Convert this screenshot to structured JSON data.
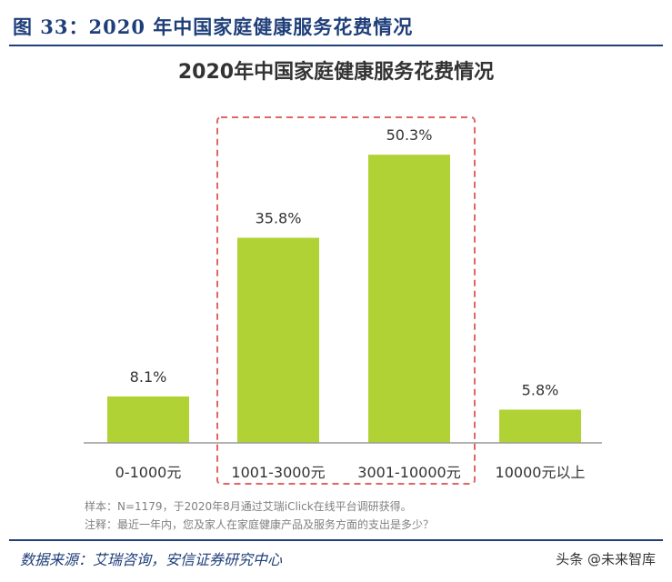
{
  "figure": {
    "label": "图 33：2020 年中国家庭健康服务花费情况",
    "source": "数据来源：艾瑞咨询，安信证券研究中心",
    "watermark": "头条 @未来智库"
  },
  "chart_data": {
    "type": "bar",
    "title": "2020年中国家庭健康服务花费情况",
    "categories": [
      "0-1000元",
      "1001-3000元",
      "3001-10000元",
      "10000元以上"
    ],
    "values": [
      8.1,
      35.8,
      50.3,
      5.8
    ],
    "value_labels": [
      "8.1%",
      "35.8%",
      "50.3%",
      "5.8%"
    ],
    "unit": "%",
    "ylim": [
      0,
      60
    ],
    "grid": false,
    "legend": "none",
    "bar_color": "#b0d235",
    "highlight": {
      "categories": [
        "1001-3000元",
        "3001-10000元"
      ],
      "color": "#e06666",
      "style": "dashed"
    },
    "notes": [
      "样本：N=1179，于2020年8月通过艾瑞iClick在线平台调研获得。",
      "注释：最近一年内，您及家人在家庭健康产品及服务方面的支出是多少？"
    ]
  }
}
